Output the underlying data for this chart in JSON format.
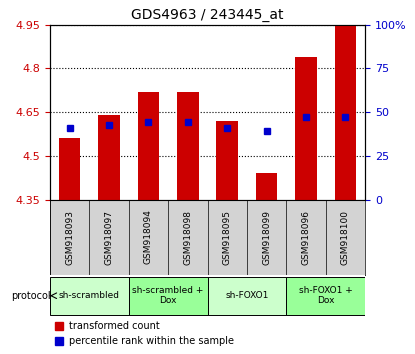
{
  "title": "GDS4963 / 243445_at",
  "samples": [
    "GSM918093",
    "GSM918097",
    "GSM918094",
    "GSM918098",
    "GSM918095",
    "GSM918099",
    "GSM918096",
    "GSM918100"
  ],
  "bar_values": [
    4.56,
    4.64,
    4.72,
    4.72,
    4.62,
    4.44,
    4.84,
    4.95
  ],
  "bar_bottom": 4.35,
  "percentile_values": [
    4.595,
    4.605,
    4.615,
    4.615,
    4.595,
    4.585,
    4.635,
    4.635
  ],
  "bar_color": "#cc0000",
  "dot_color": "#0000cc",
  "ylim": [
    4.35,
    4.95
  ],
  "yticks": [
    4.35,
    4.5,
    4.65,
    4.8,
    4.95
  ],
  "ytick_labels": [
    "4.35",
    "4.5",
    "4.65",
    "4.8",
    "4.95"
  ],
  "right_yticks": [
    0,
    25,
    50,
    75,
    100
  ],
  "right_ytick_labels": [
    "0",
    "25",
    "50",
    "75",
    "100%"
  ],
  "protocols": [
    {
      "label": "sh-scrambled",
      "start": 0,
      "end": 2,
      "color": "#ccffcc"
    },
    {
      "label": "sh-scrambled +\nDox",
      "start": 2,
      "end": 4,
      "color": "#99ff99"
    },
    {
      "label": "sh-FOXO1",
      "start": 4,
      "end": 6,
      "color": "#ccffcc"
    },
    {
      "label": "sh-FOXO1 +\nDox",
      "start": 6,
      "end": 8,
      "color": "#99ff99"
    }
  ],
  "legend_items": [
    {
      "label": "transformed count",
      "color": "#cc0000",
      "marker": "s"
    },
    {
      "label": "percentile rank within the sample",
      "color": "#0000cc",
      "marker": "s"
    }
  ],
  "grid_color": "#000000",
  "bg_color": "#ffffff",
  "plot_bg": "#ffffff",
  "label_area_bg": "#d3d3d3",
  "left_tick_color": "#cc0000",
  "right_tick_color": "#0000cc"
}
